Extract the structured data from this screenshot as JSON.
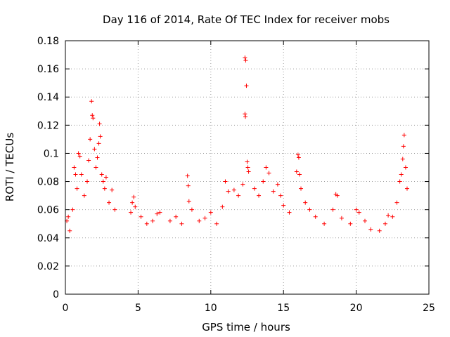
{
  "chart_data": {
    "type": "scatter",
    "title": "Day 116 of 2014, Rate Of TEC Index for receiver mobs",
    "xlabel": "GPS time / hours",
    "ylabel": "ROTI / TECUs",
    "xlim": [
      0,
      25
    ],
    "ylim": [
      0,
      0.18
    ],
    "xticks": [
      "0",
      "5",
      "10",
      "15",
      "20",
      "25"
    ],
    "yticks": [
      "0",
      "0.02",
      "0.04",
      "0.06",
      "0.08",
      "0.1",
      "0.12",
      "0.14",
      "0.16",
      "0.18"
    ],
    "grid": true,
    "marker": "+",
    "series": [
      {
        "color": "#ff0000",
        "points": [
          [
            0.1,
            0.052
          ],
          [
            0.2,
            0.055
          ],
          [
            0.3,
            0.045
          ],
          [
            0.5,
            0.06
          ],
          [
            0.6,
            0.09
          ],
          [
            0.7,
            0.085
          ],
          [
            0.8,
            0.075
          ],
          [
            0.9,
            0.1
          ],
          [
            1.0,
            0.098
          ],
          [
            1.1,
            0.085
          ],
          [
            1.3,
            0.07
          ],
          [
            1.5,
            0.08
          ],
          [
            1.6,
            0.095
          ],
          [
            1.7,
            0.11
          ],
          [
            1.8,
            0.137
          ],
          [
            1.85,
            0.127
          ],
          [
            1.9,
            0.125
          ],
          [
            2.0,
            0.103
          ],
          [
            2.1,
            0.09
          ],
          [
            2.2,
            0.097
          ],
          [
            2.3,
            0.107
          ],
          [
            2.35,
            0.121
          ],
          [
            2.4,
            0.112
          ],
          [
            2.5,
            0.085
          ],
          [
            2.6,
            0.08
          ],
          [
            2.7,
            0.075
          ],
          [
            2.8,
            0.083
          ],
          [
            3.0,
            0.065
          ],
          [
            3.2,
            0.074
          ],
          [
            3.4,
            0.06
          ],
          [
            4.5,
            0.058
          ],
          [
            4.6,
            0.065
          ],
          [
            4.7,
            0.069
          ],
          [
            4.8,
            0.062
          ],
          [
            5.2,
            0.055
          ],
          [
            5.6,
            0.05
          ],
          [
            6.0,
            0.052
          ],
          [
            6.3,
            0.057
          ],
          [
            6.5,
            0.058
          ],
          [
            7.2,
            0.052
          ],
          [
            7.6,
            0.055
          ],
          [
            8.0,
            0.05
          ],
          [
            8.4,
            0.084
          ],
          [
            8.45,
            0.077
          ],
          [
            8.5,
            0.066
          ],
          [
            8.7,
            0.06
          ],
          [
            9.2,
            0.052
          ],
          [
            9.6,
            0.054
          ],
          [
            10.0,
            0.058
          ],
          [
            10.4,
            0.05
          ],
          [
            10.8,
            0.062
          ],
          [
            11.0,
            0.08
          ],
          [
            11.2,
            0.073
          ],
          [
            11.6,
            0.074
          ],
          [
            11.9,
            0.07
          ],
          [
            12.2,
            0.078
          ],
          [
            12.35,
            0.168
          ],
          [
            12.4,
            0.166
          ],
          [
            12.45,
            0.148
          ],
          [
            12.35,
            0.128
          ],
          [
            12.38,
            0.126
          ],
          [
            12.5,
            0.094
          ],
          [
            12.55,
            0.09
          ],
          [
            12.6,
            0.087
          ],
          [
            13.0,
            0.075
          ],
          [
            13.3,
            0.07
          ],
          [
            13.6,
            0.08
          ],
          [
            13.8,
            0.09
          ],
          [
            14.0,
            0.086
          ],
          [
            14.3,
            0.073
          ],
          [
            14.6,
            0.078
          ],
          [
            14.8,
            0.07
          ],
          [
            15.0,
            0.063
          ],
          [
            15.4,
            0.058
          ],
          [
            15.9,
            0.087
          ],
          [
            16.0,
            0.099
          ],
          [
            16.05,
            0.097
          ],
          [
            16.1,
            0.085
          ],
          [
            16.2,
            0.075
          ],
          [
            16.5,
            0.065
          ],
          [
            16.8,
            0.06
          ],
          [
            17.2,
            0.055
          ],
          [
            17.8,
            0.05
          ],
          [
            18.4,
            0.06
          ],
          [
            18.6,
            0.071
          ],
          [
            18.7,
            0.07
          ],
          [
            19.0,
            0.054
          ],
          [
            19.6,
            0.05
          ],
          [
            20.0,
            0.06
          ],
          [
            20.2,
            0.058
          ],
          [
            20.6,
            0.052
          ],
          [
            21.0,
            0.046
          ],
          [
            21.6,
            0.045
          ],
          [
            22.0,
            0.05
          ],
          [
            22.2,
            0.056
          ],
          [
            22.5,
            0.055
          ],
          [
            22.8,
            0.065
          ],
          [
            23.0,
            0.08
          ],
          [
            23.1,
            0.085
          ],
          [
            23.2,
            0.096
          ],
          [
            23.25,
            0.105
          ],
          [
            23.3,
            0.113
          ],
          [
            23.4,
            0.09
          ],
          [
            23.5,
            0.075
          ]
        ]
      }
    ]
  }
}
